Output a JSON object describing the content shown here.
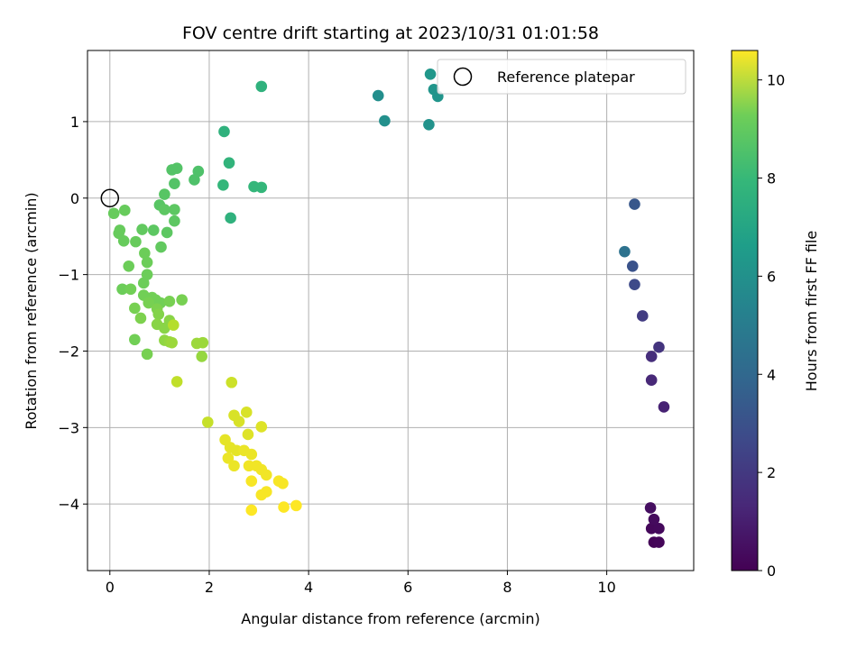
{
  "chart_data": {
    "type": "scatter",
    "title": "FOV centre drift starting at 2023/10/31 01:01:58",
    "xlabel": "Angular distance from reference (arcmin)",
    "ylabel": "Rotation from reference (arcmin)",
    "xlim": [
      -0.45,
      11.75
    ],
    "ylim": [
      -4.87,
      1.93
    ],
    "xticks": [
      0,
      2,
      4,
      6,
      8,
      10
    ],
    "yticks": [
      -4,
      -3,
      -2,
      -1,
      0,
      1
    ],
    "grid": true,
    "legend": {
      "placement": "top-right",
      "entries": [
        "Reference platepar"
      ]
    },
    "reference_point": {
      "x": 0,
      "y": 0,
      "label": "Reference platepar"
    },
    "colorbar": {
      "label": "Hours from first FF file",
      "range": [
        0,
        10.6
      ],
      "ticks": [
        0,
        2,
        4,
        6,
        8,
        10
      ],
      "colormap": "viridis"
    },
    "points": [
      {
        "x": 10.95,
        "y": -4.5,
        "c": 0.1
      },
      {
        "x": 11.05,
        "y": -4.5,
        "c": 0.15
      },
      {
        "x": 10.9,
        "y": -4.32,
        "c": 0.2
      },
      {
        "x": 11.05,
        "y": -4.32,
        "c": 0.25
      },
      {
        "x": 10.95,
        "y": -4.2,
        "c": 0.3
      },
      {
        "x": 10.88,
        "y": -4.05,
        "c": 0.4
      },
      {
        "x": 11.15,
        "y": -2.73,
        "c": 1.0
      },
      {
        "x": 10.9,
        "y": -2.38,
        "c": 1.2
      },
      {
        "x": 10.9,
        "y": -2.07,
        "c": 1.4
      },
      {
        "x": 11.05,
        "y": -1.95,
        "c": 1.6
      },
      {
        "x": 10.72,
        "y": -1.54,
        "c": 1.9
      },
      {
        "x": 10.56,
        "y": -1.13,
        "c": 2.4
      },
      {
        "x": 10.52,
        "y": -0.89,
        "c": 2.7
      },
      {
        "x": 10.56,
        "y": -0.08,
        "c": 2.9
      },
      {
        "x": 10.36,
        "y": -0.7,
        "c": 4.0
      },
      {
        "x": 6.42,
        "y": 0.96,
        "c": 5.4
      },
      {
        "x": 5.53,
        "y": 1.01,
        "c": 5.3
      },
      {
        "x": 5.4,
        "y": 1.34,
        "c": 5.2
      },
      {
        "x": 6.6,
        "y": 1.33,
        "c": 5.5
      },
      {
        "x": 6.52,
        "y": 1.42,
        "c": 5.5
      },
      {
        "x": 6.45,
        "y": 1.62,
        "c": 5.6
      },
      {
        "x": 3.05,
        "y": 1.46,
        "c": 6.8
      },
      {
        "x": 2.3,
        "y": 0.87,
        "c": 6.8
      },
      {
        "x": 2.4,
        "y": 0.46,
        "c": 6.9
      },
      {
        "x": 2.28,
        "y": 0.17,
        "c": 7.0
      },
      {
        "x": 2.9,
        "y": 0.15,
        "c": 7.0
      },
      {
        "x": 3.05,
        "y": 0.14,
        "c": 7.0
      },
      {
        "x": 2.43,
        "y": -0.26,
        "c": 6.8
      },
      {
        "x": 1.78,
        "y": 0.35,
        "c": 7.6
      },
      {
        "x": 1.7,
        "y": 0.24,
        "c": 7.6
      },
      {
        "x": 1.35,
        "y": 0.39,
        "c": 7.7
      },
      {
        "x": 1.25,
        "y": 0.37,
        "c": 7.7
      },
      {
        "x": 1.3,
        "y": 0.19,
        "c": 7.7
      },
      {
        "x": 1.1,
        "y": 0.05,
        "c": 7.8
      },
      {
        "x": 1.0,
        "y": -0.09,
        "c": 7.8
      },
      {
        "x": 1.1,
        "y": -0.15,
        "c": 7.9
      },
      {
        "x": 1.3,
        "y": -0.15,
        "c": 7.9
      },
      {
        "x": 1.3,
        "y": -0.3,
        "c": 7.9
      },
      {
        "x": 1.15,
        "y": -0.45,
        "c": 7.9
      },
      {
        "x": 0.88,
        "y": -0.42,
        "c": 7.9
      },
      {
        "x": 0.65,
        "y": -0.41,
        "c": 8.0
      },
      {
        "x": 1.03,
        "y": -0.64,
        "c": 8.0
      },
      {
        "x": 0.08,
        "y": -0.2,
        "c": 8.1
      },
      {
        "x": 0.3,
        "y": -0.16,
        "c": 8.1
      },
      {
        "x": 0.2,
        "y": -0.42,
        "c": 8.1
      },
      {
        "x": 0.18,
        "y": -0.46,
        "c": 8.1
      },
      {
        "x": 0.28,
        "y": -0.56,
        "c": 8.1
      },
      {
        "x": 0.52,
        "y": -0.57,
        "c": 8.1
      },
      {
        "x": 0.7,
        "y": -0.72,
        "c": 8.2
      },
      {
        "x": 0.75,
        "y": -0.84,
        "c": 8.2
      },
      {
        "x": 0.38,
        "y": -0.89,
        "c": 8.2
      },
      {
        "x": 0.75,
        "y": -1.0,
        "c": 8.2
      },
      {
        "x": 0.68,
        "y": -1.11,
        "c": 8.2
      },
      {
        "x": 0.25,
        "y": -1.19,
        "c": 8.2
      },
      {
        "x": 0.42,
        "y": -1.19,
        "c": 8.3
      },
      {
        "x": 0.68,
        "y": -1.27,
        "c": 8.3
      },
      {
        "x": 0.85,
        "y": -1.3,
        "c": 8.3
      },
      {
        "x": 0.92,
        "y": -1.33,
        "c": 8.3
      },
      {
        "x": 1.02,
        "y": -1.37,
        "c": 8.3
      },
      {
        "x": 1.2,
        "y": -1.35,
        "c": 8.4
      },
      {
        "x": 1.45,
        "y": -1.33,
        "c": 8.4
      },
      {
        "x": 0.78,
        "y": -1.37,
        "c": 8.4
      },
      {
        "x": 0.5,
        "y": -1.44,
        "c": 8.4
      },
      {
        "x": 0.95,
        "y": -1.45,
        "c": 8.5
      },
      {
        "x": 0.62,
        "y": -1.57,
        "c": 8.5
      },
      {
        "x": 0.98,
        "y": -1.52,
        "c": 8.6
      },
      {
        "x": 1.2,
        "y": -1.6,
        "c": 8.7
      },
      {
        "x": 0.95,
        "y": -1.65,
        "c": 8.7
      },
      {
        "x": 1.1,
        "y": -1.7,
        "c": 8.7
      },
      {
        "x": 0.5,
        "y": -1.85,
        "c": 8.3
      },
      {
        "x": 1.1,
        "y": -1.86,
        "c": 8.8
      },
      {
        "x": 1.2,
        "y": -1.88,
        "c": 8.9
      },
      {
        "x": 1.25,
        "y": -1.89,
        "c": 9.0
      },
      {
        "x": 1.75,
        "y": -1.9,
        "c": 9.0
      },
      {
        "x": 1.87,
        "y": -1.89,
        "c": 9.0
      },
      {
        "x": 1.85,
        "y": -2.07,
        "c": 8.9
      },
      {
        "x": 0.75,
        "y": -2.04,
        "c": 8.4
      },
      {
        "x": 1.28,
        "y": -1.66,
        "c": 9.4
      },
      {
        "x": 1.35,
        "y": -2.4,
        "c": 9.6
      },
      {
        "x": 2.45,
        "y": -2.41,
        "c": 9.8
      },
      {
        "x": 1.97,
        "y": -2.93,
        "c": 9.7
      },
      {
        "x": 2.5,
        "y": -2.84,
        "c": 10.0
      },
      {
        "x": 2.6,
        "y": -2.92,
        "c": 10.0
      },
      {
        "x": 2.75,
        "y": -2.8,
        "c": 10.0
      },
      {
        "x": 3.05,
        "y": -2.99,
        "c": 10.1
      },
      {
        "x": 2.78,
        "y": -3.09,
        "c": 10.1
      },
      {
        "x": 2.32,
        "y": -3.16,
        "c": 10.2
      },
      {
        "x": 2.42,
        "y": -3.26,
        "c": 10.2
      },
      {
        "x": 2.55,
        "y": -3.3,
        "c": 10.2
      },
      {
        "x": 2.7,
        "y": -3.3,
        "c": 10.3
      },
      {
        "x": 2.85,
        "y": -3.35,
        "c": 10.3
      },
      {
        "x": 2.38,
        "y": -3.4,
        "c": 10.3
      },
      {
        "x": 2.5,
        "y": -3.5,
        "c": 10.3
      },
      {
        "x": 2.8,
        "y": -3.5,
        "c": 10.4
      },
      {
        "x": 2.95,
        "y": -3.5,
        "c": 10.4
      },
      {
        "x": 3.05,
        "y": -3.55,
        "c": 10.4
      },
      {
        "x": 3.15,
        "y": -3.62,
        "c": 10.4
      },
      {
        "x": 2.85,
        "y": -3.7,
        "c": 10.5
      },
      {
        "x": 3.4,
        "y": -3.7,
        "c": 10.5
      },
      {
        "x": 3.48,
        "y": -3.73,
        "c": 10.5
      },
      {
        "x": 3.15,
        "y": -3.84,
        "c": 10.5
      },
      {
        "x": 3.05,
        "y": -3.88,
        "c": 10.5
      },
      {
        "x": 3.5,
        "y": -4.04,
        "c": 10.6
      },
      {
        "x": 3.75,
        "y": -4.02,
        "c": 10.6
      },
      {
        "x": 2.85,
        "y": -4.08,
        "c": 10.6
      }
    ]
  }
}
